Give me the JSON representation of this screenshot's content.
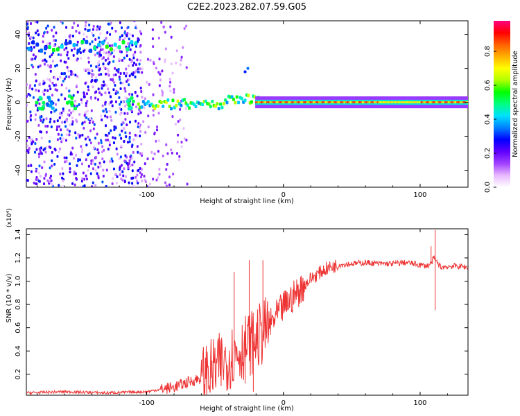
{
  "title": "C2E2.2023.282.07.59.G05",
  "chart_data": [
    {
      "type": "heatmap",
      "xlabel": "Height of straight line (km)",
      "ylabel": "Frequency (Hz)",
      "xlim": [
        -188,
        135
      ],
      "ylim": [
        -50,
        48
      ],
      "xticks": [
        -100,
        0,
        100
      ],
      "yticks": [
        -40,
        -20,
        0,
        20,
        40
      ],
      "colorbar": {
        "label": "Normalized spectral amplitude",
        "range": [
          0,
          0.98
        ],
        "ticks": [
          0.0,
          0.2,
          0.4,
          0.6,
          0.8
        ],
        "colormap": [
          "#ffffff",
          "#e8b8ff",
          "#a040ff",
          "#6000ff",
          "#0000ff",
          "#0080ff",
          "#00e0ff",
          "#00ff80",
          "#00ff00",
          "#b0ff00",
          "#ffff00",
          "#ffb000",
          "#ff6000",
          "#ff0000",
          "#ff0080"
        ]
      },
      "features": [
        {
          "name": "carrier line",
          "frequency_hz": 0,
          "x_range": [
            -110,
            135
          ],
          "peak_amplitude": 0.9
        },
        {
          "name": "scattered low-altitude noise",
          "x_range": [
            -188,
            -105
          ],
          "amplitude_range": [
            0.05,
            0.5
          ]
        },
        {
          "name": "sideband",
          "frequency_hz": 35,
          "x_range": [
            -188,
            -105
          ],
          "amplitude_range": [
            0.3,
            0.55
          ]
        }
      ]
    },
    {
      "type": "line",
      "xlabel": "Height of straight line (km)",
      "ylabel": "SNR (10 * v/v)",
      "y_multiplier": "(x10⁴)",
      "xlim": [
        -188,
        135
      ],
      "ylim": [
        0.02,
        1.45
      ],
      "xticks": [
        -100,
        0,
        100
      ],
      "yticks": [
        0.2,
        0.4,
        0.6,
        0.8,
        1.0,
        1.2,
        1.4
      ],
      "series": [
        {
          "color": "#ee3333",
          "x": [
            -188,
            -160,
            -130,
            -100,
            -90,
            -80,
            -70,
            -60,
            -50,
            -40,
            -30,
            -20,
            -10,
            0,
            10,
            20,
            30,
            40,
            50,
            60,
            70,
            80,
            90,
            100,
            105,
            108,
            110,
            115,
            125,
            135
          ],
          "y": [
            0.04,
            0.05,
            0.04,
            0.05,
            0.07,
            0.09,
            0.13,
            0.17,
            0.25,
            0.34,
            0.42,
            0.5,
            0.62,
            0.78,
            0.9,
            1.02,
            1.1,
            1.14,
            1.15,
            1.16,
            1.15,
            1.15,
            1.16,
            1.14,
            1.13,
            1.15,
            1.2,
            1.12,
            1.13,
            1.12
          ],
          "spikes": [
            {
              "x": -36,
              "y": 1.08
            },
            {
              "x": -28,
              "y": 0.12
            },
            {
              "x": -25,
              "y": 1.18
            },
            {
              "x": -22,
              "y": 0.05
            },
            {
              "x": -15,
              "y": 1.18
            },
            {
              "x": 111,
              "y": 1.44
            },
            {
              "x": 111,
              "y": 0.75
            },
            {
              "x": 108,
              "y": 1.3
            }
          ]
        }
      ]
    }
  ]
}
